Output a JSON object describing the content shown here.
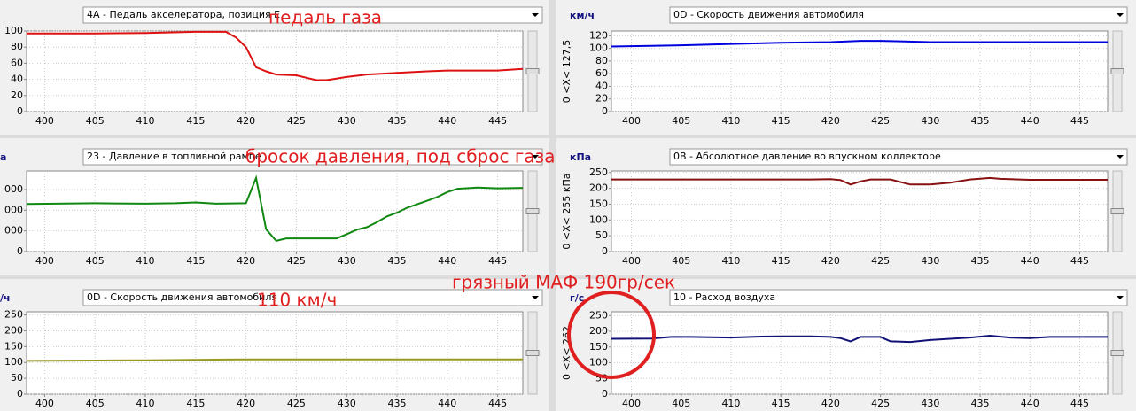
{
  "chart_data": [
    {
      "type": "line",
      "selector": "4A - Педаль акселератора, позиция E",
      "x": [
        398.2,
        405,
        410,
        415,
        418,
        419,
        420,
        421,
        422,
        423,
        425,
        426,
        427,
        428,
        429,
        430,
        432,
        435,
        438,
        440,
        445,
        447.5
      ],
      "series": [
        {
          "color": "#dd1111",
          "values": [
            97,
            97,
            97.5,
            99,
            99,
            92,
            80,
            55,
            50,
            46,
            45,
            42,
            39,
            39,
            41,
            43,
            46,
            48,
            50,
            51,
            51,
            53
          ]
        }
      ],
      "xlim": [
        398.2,
        447.5
      ],
      "xticks": [
        400,
        405,
        410,
        415,
        420,
        425,
        430,
        435,
        440,
        445
      ],
      "ylim": [
        0,
        100
      ],
      "yticks": [
        0,
        20,
        40,
        60,
        80,
        100
      ],
      "grid": true
    },
    {
      "type": "line",
      "units": "км/ч",
      "selector": "0D - Скорость движения автомобиля",
      "range_label": "0 <X< 127,5",
      "x": [
        398,
        405,
        410,
        415,
        420,
        423,
        425,
        430,
        435,
        440,
        445,
        447.8
      ],
      "series": [
        {
          "color": "#0000dd",
          "values": [
            103,
            105,
            107,
            109,
            110,
            112,
            112,
            110,
            110,
            110,
            110,
            110
          ]
        }
      ],
      "xlim": [
        398,
        447.8
      ],
      "xticks": [
        400,
        405,
        410,
        415,
        420,
        425,
        430,
        435,
        440,
        445
      ],
      "ylim": [
        0,
        127.5
      ],
      "yticks": [
        0,
        20,
        40,
        60,
        80,
        100,
        120
      ],
      "grid": true
    },
    {
      "type": "line",
      "units": "а",
      "selector": "23 - Давление в топливной рампе",
      "x": [
        398.2,
        405,
        410,
        413,
        415,
        417,
        420,
        421,
        422,
        423,
        424,
        426,
        429,
        430,
        431,
        432,
        433,
        434,
        435,
        436,
        438,
        439,
        440,
        441,
        443,
        445,
        447.5
      ],
      "series": [
        {
          "color": "#118811",
          "values": [
            11500,
            11700,
            11600,
            11700,
            11900,
            11600,
            11700,
            17800,
            5400,
            2600,
            3200,
            3200,
            3200,
            4200,
            5300,
            5900,
            7100,
            8500,
            9400,
            10600,
            12300,
            13200,
            14400,
            15200,
            15500,
            15300,
            15400
          ]
        }
      ],
      "xlim": [
        398.2,
        447.5
      ],
      "xticks": [
        400,
        405,
        410,
        415,
        420,
        425,
        430,
        435,
        440,
        445
      ],
      "ylim": [
        0,
        19500
      ],
      "yticks": [
        0,
        {
          "value": 5000,
          "label": "000"
        },
        {
          "value": 10000,
          "label": "000"
        },
        {
          "value": 15000,
          "label": "000"
        }
      ],
      "grid": true
    },
    {
      "type": "line",
      "units": "кПа",
      "selector": "0B - Абсолютное давление во впускном коллекторе",
      "range_label": "0 <X< 255 кПа",
      "x": [
        398,
        410,
        418,
        420,
        421,
        422,
        423,
        424,
        426,
        427,
        428,
        430,
        432,
        434,
        436,
        437,
        440,
        445,
        447.8
      ],
      "series": [
        {
          "color": "#881111",
          "values": [
            228,
            228,
            228,
            229,
            226,
            212,
            222,
            228,
            228,
            220,
            212,
            212,
            218,
            228,
            233,
            230,
            227,
            227,
            227
          ]
        }
      ],
      "xlim": [
        398,
        447.8
      ],
      "xticks": [
        400,
        405,
        410,
        415,
        420,
        425,
        430,
        435,
        440,
        445
      ],
      "ylim": [
        0,
        255
      ],
      "yticks": [
        0,
        50,
        100,
        150,
        200,
        250
      ],
      "grid": true
    },
    {
      "type": "line",
      "units": "/ч",
      "selector": "0D - Скорость движения автомобиля",
      "x": [
        398.2,
        410,
        420,
        430,
        440,
        447.5
      ],
      "series": [
        {
          "color": "#999922",
          "values": [
            105,
            107,
            110,
            110,
            110,
            110
          ]
        }
      ],
      "xlim": [
        398.2,
        447.5
      ],
      "xticks": [
        400,
        405,
        410,
        415,
        420,
        425,
        430,
        435,
        440,
        445
      ],
      "ylim": [
        0,
        260
      ],
      "yticks": [
        0,
        50,
        100,
        150,
        200,
        250
      ],
      "grid": true
    },
    {
      "type": "line",
      "units": "г/с",
      "selector": "10 - Расход воздуха",
      "range_label": "0 <X< 262",
      "x": [
        398,
        402,
        404,
        406,
        410,
        413,
        415,
        418,
        420,
        421,
        422,
        423,
        425,
        426,
        428,
        430,
        434,
        436,
        438,
        440,
        442,
        445,
        447.8
      ],
      "series": [
        {
          "color": "#111177",
          "values": [
            176,
            177,
            182,
            182,
            180,
            183,
            184,
            184,
            182,
            178,
            168,
            182,
            182,
            168,
            166,
            172,
            180,
            186,
            180,
            178,
            182,
            182,
            182
          ]
        }
      ],
      "xlim": [
        398,
        447.8
      ],
      "xticks": [
        400,
        405,
        410,
        415,
        420,
        425,
        430,
        435,
        440,
        445
      ],
      "ylim": [
        0,
        262
      ],
      "yticks": [
        0,
        50,
        100,
        150,
        200,
        250
      ],
      "grid": true
    }
  ],
  "annotations": [
    "педаль газа",
    "бросок давления, под сброс газа",
    "110 км/ч",
    "грязный МАФ  190гр/сек"
  ]
}
